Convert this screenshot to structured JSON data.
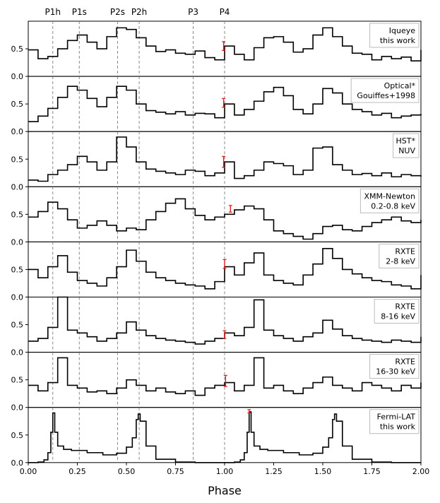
{
  "chart_data": {
    "type": "line",
    "xlabel": "Phase",
    "xlim": [
      0.0,
      2.0
    ],
    "ylim": [
      0.0,
      1.0
    ],
    "x_ticks": [
      "0.00",
      "0.25",
      "0.50",
      "0.75",
      "1.00",
      "1.25",
      "1.50",
      "1.75",
      "2.00"
    ],
    "y_ticks": [
      "0.0",
      "0.5"
    ],
    "peak_markers": [
      {
        "label": "P1h",
        "phase": 0.125
      },
      {
        "label": "P1s",
        "phase": 0.26
      },
      {
        "label": "P2s",
        "phase": 0.455
      },
      {
        "label": "P2h",
        "phase": 0.565
      },
      {
        "label": "P3",
        "phase": 0.84
      },
      {
        "label": "P4",
        "phase": 1.0
      }
    ],
    "panels": [
      {
        "legend": [
          "Iqueye",
          "this work"
        ],
        "x": [
          0.0,
          0.05,
          0.1,
          0.15,
          0.2,
          0.25,
          0.3,
          0.35,
          0.4,
          0.45,
          0.5,
          0.55,
          0.6,
          0.65,
          0.7,
          0.75,
          0.8,
          0.85,
          0.9,
          0.95,
          1.0,
          1.05,
          1.1,
          1.15,
          1.2,
          1.25,
          1.3,
          1.35,
          1.4,
          1.45,
          1.5,
          1.55,
          1.6,
          1.65,
          1.7,
          1.75,
          1.8,
          1.85,
          1.9,
          1.95,
          2.0
        ],
        "values": [
          0.48,
          0.32,
          0.36,
          0.5,
          0.65,
          0.75,
          0.62,
          0.5,
          0.72,
          0.88,
          0.85,
          0.7,
          0.55,
          0.45,
          0.48,
          0.42,
          0.4,
          0.46,
          0.34,
          0.3,
          0.55,
          0.4,
          0.3,
          0.52,
          0.7,
          0.72,
          0.62,
          0.44,
          0.5,
          0.75,
          0.88,
          0.72,
          0.55,
          0.42,
          0.4,
          0.3,
          0.36,
          0.32,
          0.35,
          0.28,
          0.48
        ],
        "error_phase": 0.995,
        "error_value": 0.55,
        "error_size": 0.08
      },
      {
        "legend": [
          "Optical*",
          "Gouiffes+1998"
        ],
        "x": [
          0.0,
          0.05,
          0.1,
          0.15,
          0.2,
          0.25,
          0.3,
          0.35,
          0.4,
          0.45,
          0.5,
          0.55,
          0.6,
          0.65,
          0.7,
          0.75,
          0.8,
          0.85,
          0.9,
          0.95,
          1.0,
          1.05,
          1.1,
          1.15,
          1.2,
          1.25,
          1.3,
          1.35,
          1.4,
          1.45,
          1.5,
          1.55,
          1.6,
          1.65,
          1.7,
          1.75,
          1.8,
          1.85,
          1.9,
          1.95,
          2.0
        ],
        "values": [
          0.18,
          0.28,
          0.42,
          0.62,
          0.82,
          0.75,
          0.6,
          0.45,
          0.62,
          0.82,
          0.75,
          0.5,
          0.38,
          0.35,
          0.32,
          0.36,
          0.3,
          0.33,
          0.32,
          0.25,
          0.5,
          0.3,
          0.4,
          0.55,
          0.72,
          0.8,
          0.65,
          0.4,
          0.32,
          0.5,
          0.78,
          0.7,
          0.5,
          0.4,
          0.36,
          0.3,
          0.33,
          0.25,
          0.28,
          0.3,
          0.32
        ],
        "error_phase": 0.995,
        "error_value": 0.52,
        "error_size": 0.08
      },
      {
        "legend": [
          "HST*",
          "NUV"
        ],
        "x": [
          0.0,
          0.05,
          0.1,
          0.15,
          0.2,
          0.25,
          0.3,
          0.35,
          0.4,
          0.45,
          0.5,
          0.55,
          0.6,
          0.65,
          0.7,
          0.75,
          0.8,
          0.85,
          0.9,
          0.95,
          1.0,
          1.05,
          1.1,
          1.15,
          1.2,
          1.25,
          1.3,
          1.35,
          1.4,
          1.45,
          1.5,
          1.55,
          1.6,
          1.65,
          1.7,
          1.75,
          1.8,
          1.85,
          1.9,
          1.95,
          2.0
        ],
        "values": [
          0.12,
          0.1,
          0.22,
          0.3,
          0.4,
          0.55,
          0.45,
          0.3,
          0.45,
          0.9,
          0.72,
          0.45,
          0.32,
          0.28,
          0.25,
          0.22,
          0.3,
          0.28,
          0.2,
          0.25,
          0.45,
          0.15,
          0.2,
          0.3,
          0.45,
          0.42,
          0.38,
          0.22,
          0.3,
          0.7,
          0.72,
          0.4,
          0.3,
          0.22,
          0.24,
          0.2,
          0.25,
          0.18,
          0.22,
          0.2,
          0.18
        ],
        "error_phase": 0.995,
        "error_value": 0.45,
        "error_size": 0.1
      },
      {
        "legend": [
          "XMM-Newton",
          "0.2-0.8 keV"
        ],
        "x": [
          0.0,
          0.05,
          0.1,
          0.15,
          0.2,
          0.25,
          0.3,
          0.35,
          0.4,
          0.45,
          0.5,
          0.55,
          0.6,
          0.65,
          0.7,
          0.75,
          0.8,
          0.85,
          0.9,
          0.95,
          1.0,
          1.05,
          1.1,
          1.15,
          1.2,
          1.25,
          1.3,
          1.35,
          1.4,
          1.45,
          1.5,
          1.55,
          1.6,
          1.65,
          1.7,
          1.75,
          1.8,
          1.85,
          1.9,
          1.95,
          2.0
        ],
        "values": [
          0.45,
          0.55,
          0.72,
          0.6,
          0.4,
          0.25,
          0.3,
          0.38,
          0.3,
          0.2,
          0.25,
          0.22,
          0.4,
          0.55,
          0.7,
          0.78,
          0.6,
          0.48,
          0.4,
          0.45,
          0.5,
          0.58,
          0.65,
          0.6,
          0.4,
          0.2,
          0.15,
          0.1,
          0.05,
          0.15,
          0.28,
          0.3,
          0.22,
          0.2,
          0.28,
          0.35,
          0.4,
          0.45,
          0.38,
          0.35,
          0.4
        ],
        "error_phase": 1.03,
        "error_value": 0.6,
        "error_size": 0.06
      },
      {
        "legend": [
          "RXTE",
          "2-8 keV"
        ],
        "x": [
          0.0,
          0.05,
          0.1,
          0.15,
          0.2,
          0.25,
          0.3,
          0.35,
          0.4,
          0.45,
          0.5,
          0.55,
          0.6,
          0.65,
          0.7,
          0.75,
          0.8,
          0.85,
          0.9,
          0.95,
          1.0,
          1.05,
          1.1,
          1.15,
          1.2,
          1.25,
          1.3,
          1.35,
          1.4,
          1.45,
          1.5,
          1.55,
          1.6,
          1.65,
          1.7,
          1.75,
          1.8,
          1.85,
          1.9,
          1.95,
          2.0
        ],
        "values": [
          0.5,
          0.35,
          0.55,
          0.75,
          0.45,
          0.3,
          0.25,
          0.2,
          0.35,
          0.55,
          0.85,
          0.65,
          0.45,
          0.35,
          0.3,
          0.25,
          0.22,
          0.2,
          0.15,
          0.28,
          0.55,
          0.4,
          0.62,
          0.8,
          0.4,
          0.3,
          0.25,
          0.22,
          0.4,
          0.6,
          0.88,
          0.7,
          0.5,
          0.42,
          0.35,
          0.3,
          0.28,
          0.22,
          0.2,
          0.15,
          0.4
        ],
        "error_phase": 1.0,
        "error_value": 0.6,
        "error_size": 0.08
      },
      {
        "legend": [
          "RXTE",
          "8-16 keV"
        ],
        "x": [
          0.0,
          0.05,
          0.1,
          0.15,
          0.2,
          0.25,
          0.3,
          0.35,
          0.4,
          0.45,
          0.5,
          0.55,
          0.6,
          0.65,
          0.7,
          0.75,
          0.8,
          0.85,
          0.9,
          0.95,
          1.0,
          1.05,
          1.1,
          1.15,
          1.2,
          1.25,
          1.3,
          1.35,
          1.4,
          1.45,
          1.5,
          1.55,
          1.6,
          1.65,
          1.7,
          1.75,
          1.8,
          1.85,
          1.9,
          1.95,
          2.0
        ],
        "values": [
          0.2,
          0.25,
          0.45,
          1.0,
          0.4,
          0.35,
          0.28,
          0.2,
          0.25,
          0.35,
          0.55,
          0.4,
          0.3,
          0.25,
          0.22,
          0.2,
          0.18,
          0.15,
          0.2,
          0.25,
          0.35,
          0.3,
          0.45,
          0.95,
          0.4,
          0.3,
          0.25,
          0.2,
          0.28,
          0.35,
          0.58,
          0.42,
          0.3,
          0.25,
          0.22,
          0.2,
          0.18,
          0.22,
          0.2,
          0.18,
          0.28
        ],
        "error_phase": 1.0,
        "error_value": 0.32,
        "error_size": 0.07
      },
      {
        "legend": [
          "RXTE",
          "16-30 keV"
        ],
        "x": [
          0.0,
          0.05,
          0.1,
          0.15,
          0.2,
          0.25,
          0.3,
          0.35,
          0.4,
          0.45,
          0.5,
          0.55,
          0.6,
          0.65,
          0.7,
          0.75,
          0.8,
          0.85,
          0.9,
          0.95,
          1.0,
          1.05,
          1.1,
          1.15,
          1.2,
          1.25,
          1.3,
          1.35,
          1.4,
          1.45,
          1.5,
          1.55,
          1.6,
          1.65,
          1.7,
          1.75,
          1.8,
          1.85,
          1.9,
          1.95,
          2.0
        ],
        "values": [
          0.4,
          0.3,
          0.45,
          0.9,
          0.4,
          0.35,
          0.28,
          0.3,
          0.25,
          0.35,
          0.5,
          0.4,
          0.3,
          0.35,
          0.28,
          0.25,
          0.3,
          0.22,
          0.35,
          0.4,
          0.45,
          0.3,
          0.4,
          0.9,
          0.35,
          0.4,
          0.3,
          0.25,
          0.35,
          0.45,
          0.55,
          0.4,
          0.35,
          0.3,
          0.45,
          0.4,
          0.35,
          0.3,
          0.4,
          0.35,
          0.45
        ],
        "error_phase": 1.005,
        "error_value": 0.48,
        "error_size": 0.1
      },
      {
        "legend": [
          "Fermi-LAT",
          "this work"
        ],
        "x": [
          0.0,
          0.05,
          0.08,
          0.1,
          0.115,
          0.125,
          0.135,
          0.15,
          0.18,
          0.22,
          0.3,
          0.38,
          0.45,
          0.5,
          0.53,
          0.55,
          0.56,
          0.57,
          0.6,
          0.65,
          0.75,
          0.85,
          0.95,
          1.0,
          1.05,
          1.08,
          1.1,
          1.115,
          1.125,
          1.135,
          1.15,
          1.18,
          1.22,
          1.3,
          1.38,
          1.45,
          1.5,
          1.53,
          1.55,
          1.56,
          1.57,
          1.6,
          1.65,
          1.75,
          1.85,
          1.95,
          2.0
        ],
        "values": [
          0.0,
          0.01,
          0.05,
          0.18,
          0.55,
          0.9,
          0.55,
          0.3,
          0.24,
          0.22,
          0.18,
          0.14,
          0.17,
          0.28,
          0.45,
          0.78,
          0.88,
          0.75,
          0.3,
          0.06,
          0.01,
          0.0,
          0.0,
          0.0,
          0.01,
          0.05,
          0.18,
          0.55,
          0.92,
          0.55,
          0.3,
          0.24,
          0.22,
          0.18,
          0.14,
          0.17,
          0.28,
          0.45,
          0.78,
          0.88,
          0.75,
          0.3,
          0.06,
          0.01,
          0.0,
          0.0,
          0.0
        ],
        "error_phase": 1.125,
        "error_value": 0.93,
        "error_size": 0.03
      }
    ]
  }
}
